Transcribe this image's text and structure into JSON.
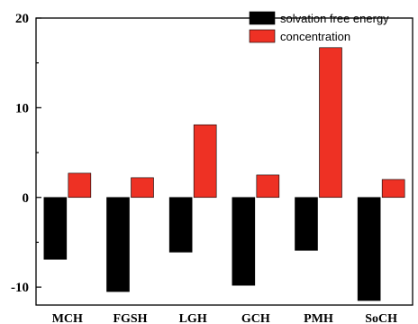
{
  "chart_data": {
    "type": "bar",
    "title": "",
    "xlabel": "",
    "ylabel": "",
    "categories": [
      "MCH",
      "FGSH",
      "LGH",
      "GCH",
      "PMH",
      "SoCH"
    ],
    "series": [
      {
        "name": "solvation free energy",
        "color": "#000000",
        "values": [
          -6.9,
          -10.5,
          -6.1,
          -9.8,
          -5.9,
          -11.5
        ]
      },
      {
        "name": "concentration",
        "color": "#ee3124",
        "values": [
          2.7,
          2.2,
          8.1,
          2.5,
          16.7,
          2.0
        ]
      }
    ],
    "ylim": [
      -12,
      20
    ],
    "yticks": [
      -10,
      0,
      10,
      20
    ],
    "grid": false,
    "legend_position": "top-right"
  }
}
